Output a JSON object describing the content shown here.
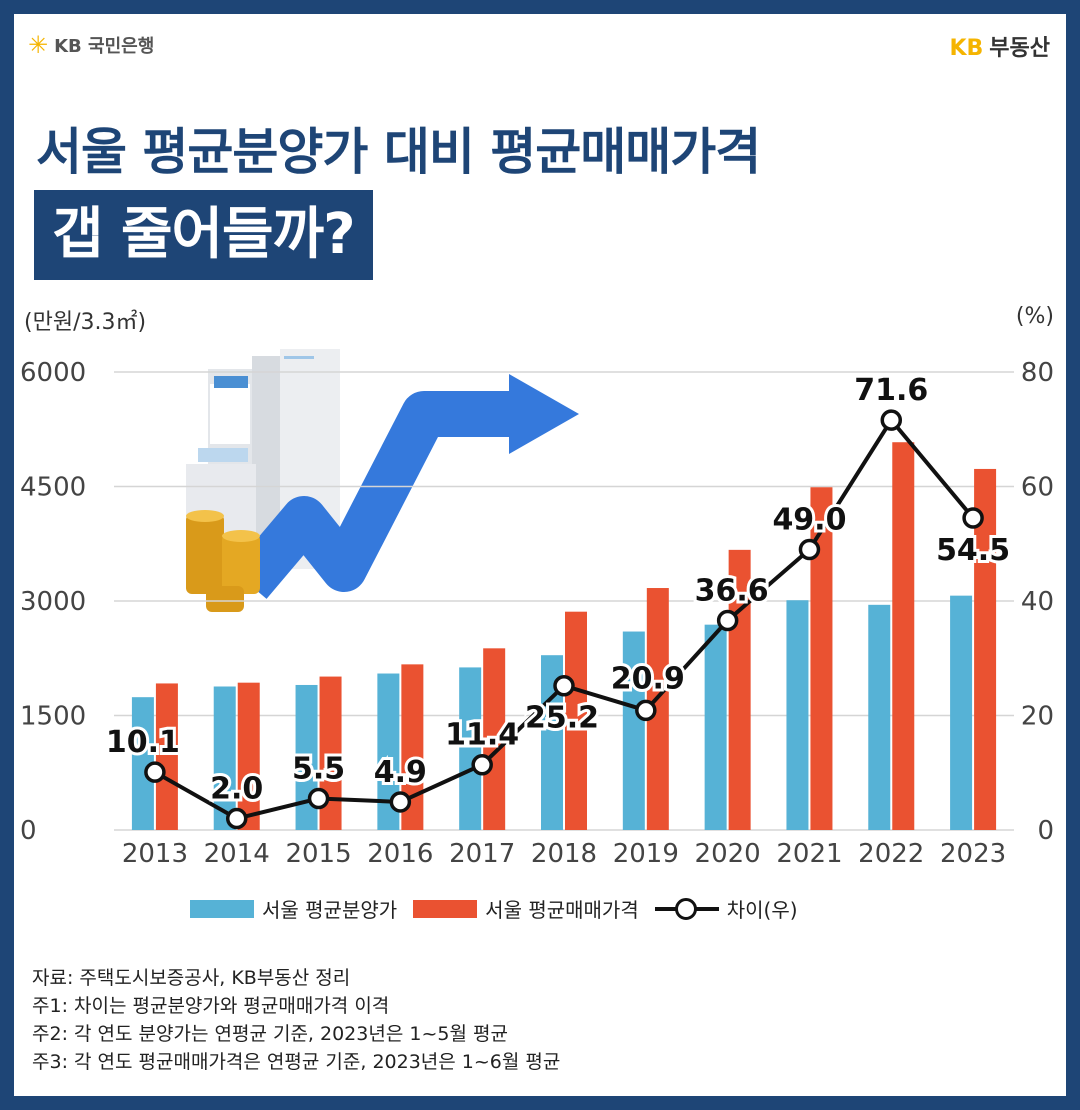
{
  "header": {
    "bank_star": "✳",
    "bank_logo": "KB 국민은행",
    "realty_kb": "KB",
    "realty_name": "부동산"
  },
  "title": {
    "line1": "서울 평균분양가 대비 평균매매가격",
    "line2": "갭 줄어들까?"
  },
  "colors": {
    "presale_bar": "#56b2d6",
    "sale_bar": "#ea5231",
    "gap_line": "#111111",
    "brand_navy": "#1e4576",
    "kb_yellow": "#f5b400"
  },
  "chart_data": {
    "type": "bar",
    "title": "서울 평균분양가 대비 평균매매가격 갭 줄어들까?",
    "categories": [
      "2013",
      "2014",
      "2015",
      "2016",
      "2017",
      "2018",
      "2019",
      "2020",
      "2021",
      "2022",
      "2023"
    ],
    "series": [
      {
        "name": "서울 평균분양가",
        "type": "bar",
        "axis": "left",
        "values": [
          1740,
          1880,
          1900,
          2050,
          2130,
          2290,
          2600,
          2690,
          3010,
          2950,
          3070
        ]
      },
      {
        "name": "서울 평균매매가격",
        "type": "bar",
        "axis": "left",
        "values": [
          1920,
          1930,
          2010,
          2170,
          2380,
          2860,
          3170,
          3670,
          4490,
          5080,
          4730
        ]
      },
      {
        "name": "차이(우)",
        "type": "line",
        "axis": "right",
        "values": [
          10.1,
          2.0,
          5.5,
          4.9,
          11.4,
          25.2,
          20.9,
          36.6,
          49.0,
          71.6,
          54.5
        ],
        "labels": [
          "10.1",
          "2.0",
          "5.5",
          "4.9",
          "11.4",
          "25.2",
          "20.9",
          "36.6",
          "49.0",
          "71.6",
          "54.5"
        ]
      }
    ],
    "left_axis": {
      "unit_label": "(만원/3.3㎡)",
      "ylim": [
        0,
        6000
      ],
      "ticks": [
        "0",
        "1500",
        "3000",
        "4500",
        "6000"
      ]
    },
    "right_axis": {
      "unit_label": "(%)",
      "ylim": [
        0,
        80
      ],
      "ticks": [
        "0",
        "20",
        "40",
        "60",
        "80"
      ]
    },
    "grid": true,
    "legend_position": "bottom"
  },
  "legend": {
    "presale": "서울 평균분양가",
    "sale": "서울 평균매매가격",
    "gap": "차이(우)"
  },
  "notes": [
    "자료: 주택도시보증공사, KB부동산 정리",
    "주1: 차이는 평균분양가와 평균매매가격 이격",
    "주2: 각 연도 분양가는 연평균 기준, 2023년은 1~5월 평균",
    "주3: 각 연도 평균매매가격은 연평균 기준, 2023년은 1~6월 평균"
  ]
}
